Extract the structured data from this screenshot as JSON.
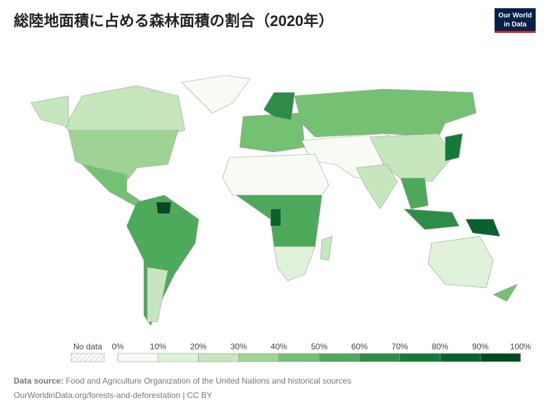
{
  "header": {
    "title": "総陸地面積に占める森林面積の割合（2020年）",
    "logo": [
      "Our World",
      "in Data"
    ]
  },
  "legend": {
    "no_data": "No data",
    "ticks": [
      {
        "value": 0,
        "label": "0%"
      },
      {
        "value": 10,
        "label": "10%"
      },
      {
        "value": 20,
        "label": "20%"
      },
      {
        "value": 30,
        "label": "30%"
      },
      {
        "value": 40,
        "label": "40%"
      },
      {
        "value": 50,
        "label": "50%"
      },
      {
        "value": 60,
        "label": "60%"
      },
      {
        "value": 70,
        "label": "70%"
      },
      {
        "value": 80,
        "label": "80%"
      },
      {
        "value": 90,
        "label": "90%"
      },
      {
        "value": 100,
        "label": "100%"
      }
    ],
    "colors": [
      "#f7fbf4",
      "#e1f2da",
      "#c6e6bd",
      "#9fd395",
      "#74c174",
      "#4daa5b",
      "#2d8d48",
      "#137a38",
      "#07622b",
      "#034a20"
    ]
  },
  "footer": {
    "source_label": "Data source:",
    "source": "Food and Agriculture Organization of the United Nations and historical sources",
    "url": "OurWorldinData.org/forests-and-deforestation | CC BY"
  }
}
